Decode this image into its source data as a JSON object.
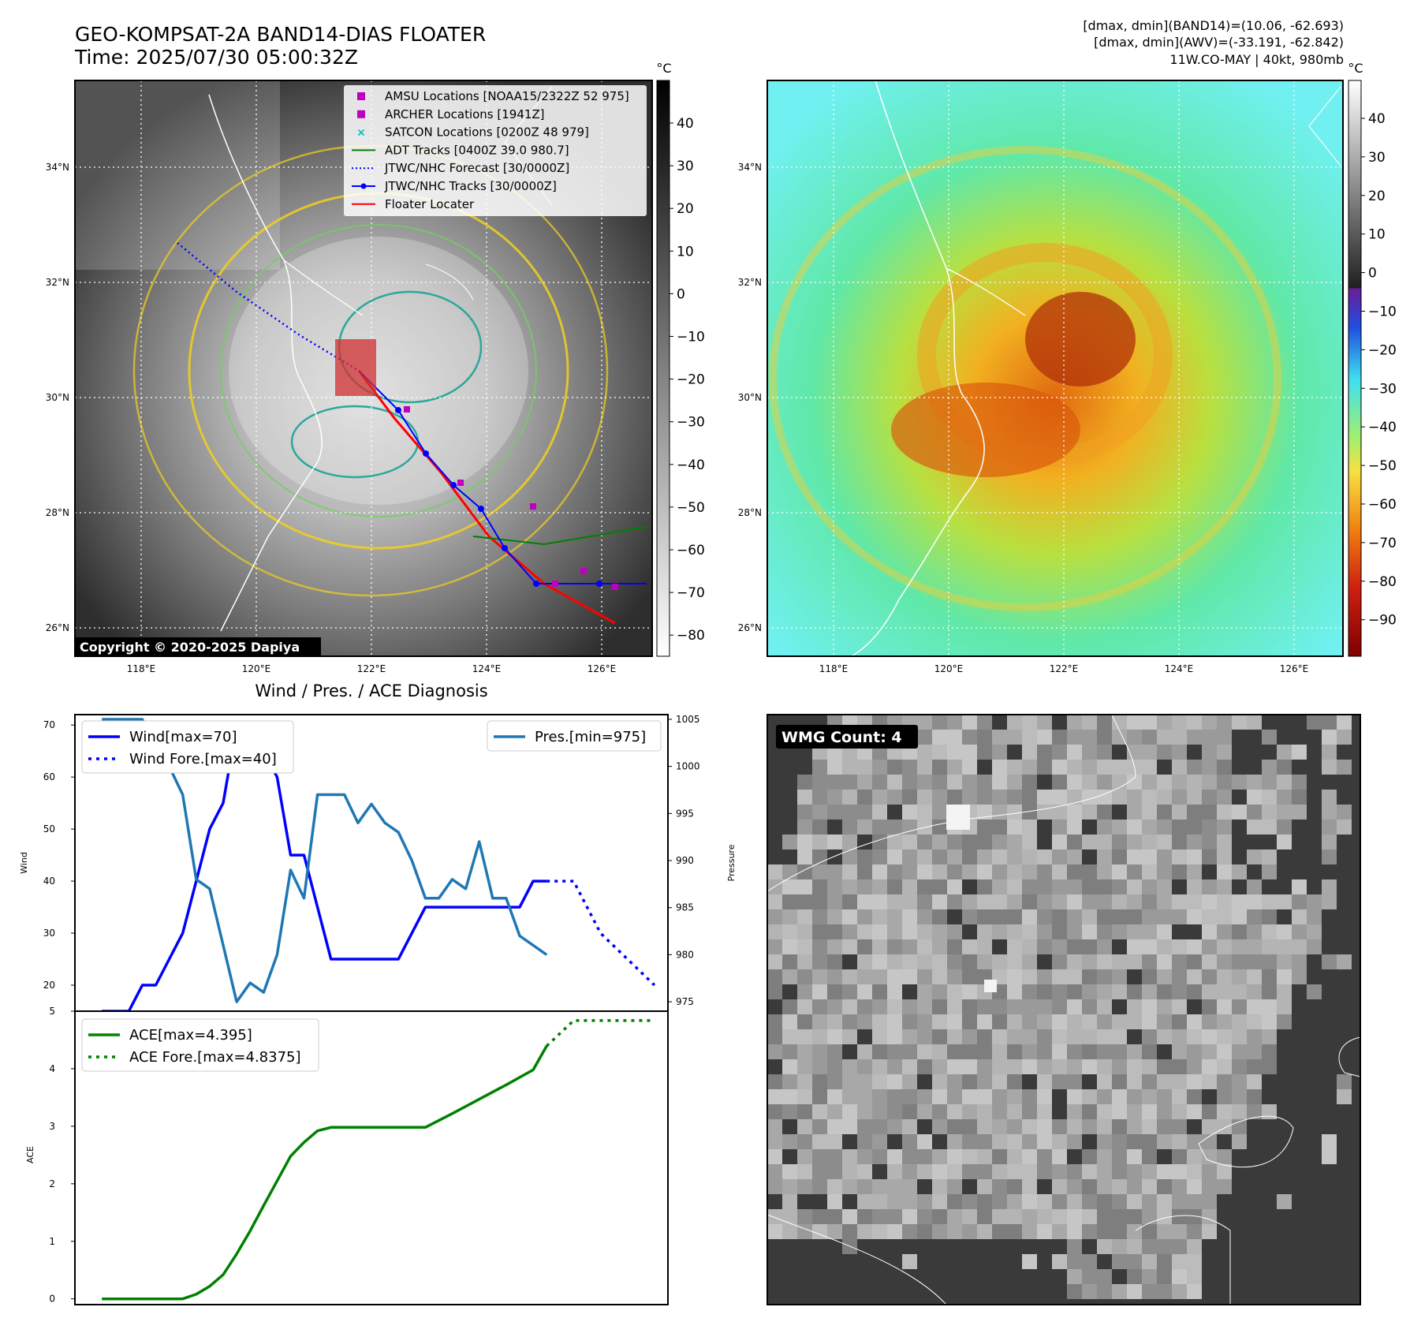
{
  "header": {
    "title_line1": "GEO-KOMPSAT-2A BAND14-DIAS FLOATER",
    "title_line2": "Time: 2025/07/30 05:00:32Z",
    "stats_line1": "[dmax, dmin](BAND14)=(10.06, -62.693)",
    "stats_line2": "[dmax, dmin](AWV)=(-33.191, -62.842)",
    "stats_line3": "11W.CO-MAY | 40kt, 980mb"
  },
  "copyright": "Copyright © 2020-2025 Dapiya",
  "map": {
    "lon_ticks": [
      "118°E",
      "120°E",
      "122°E",
      "124°E",
      "126°E"
    ],
    "lat_ticks": [
      "34°N",
      "32°N",
      "30°N",
      "28°N",
      "26°N"
    ]
  },
  "ir_panel": {
    "legend": [
      {
        "label": "AMSU Locations [NOAA15/2322Z 52 975]",
        "marker": "square",
        "color": "#c000c0"
      },
      {
        "label": "ARCHER Locations [1941Z]",
        "marker": "square",
        "color": "#c000c0"
      },
      {
        "label": "SATCON Locations [0200Z 48 979]",
        "marker": "x",
        "color": "#00bfbf"
      },
      {
        "label": "ADT Tracks [0400Z 39.0 980.7]",
        "marker": "line",
        "color": "#008000"
      },
      {
        "label": "JTWC/NHC Forecast [30/0000Z]",
        "marker": "dotted",
        "color": "#0000ff"
      },
      {
        "label": "JTWC/NHC Tracks [30/0000Z]",
        "marker": "line-dot",
        "color": "#0000ff"
      },
      {
        "label": "Floater Locater",
        "marker": "line",
        "color": "#ff0000"
      }
    ],
    "colorbar_unit": "°C",
    "colorbar_ticks": [
      "40",
      "30",
      "20",
      "10",
      "0",
      "−10",
      "−20",
      "−30",
      "−40",
      "−50",
      "−60",
      "−70",
      "−80"
    ]
  },
  "color_panel": {
    "colorbar_unit": "°C",
    "colorbar_ticks": [
      "40",
      "30",
      "20",
      "10",
      "0",
      "−10",
      "−20",
      "−30",
      "−40",
      "−50",
      "−60",
      "−70",
      "−80",
      "−90"
    ]
  },
  "wmg_panel": {
    "label": "WMG Count: 4"
  },
  "diagnosis": {
    "title": "Wind / Pres. / ACE Diagnosis",
    "wind_ylabel": "Wind",
    "pres_ylabel": "Pressure",
    "ace_ylabel": "ACE"
  },
  "chart_data": [
    {
      "type": "line",
      "title": "Wind / Pres. / ACE Diagnosis",
      "ylabel": "Wind",
      "ylim": [
        15,
        72
      ],
      "yticks": [
        20,
        30,
        40,
        50,
        60,
        70
      ],
      "xlim": [
        -2,
        42
      ],
      "series": [
        {
          "name": "Wind[max=70]",
          "color": "#0000ff",
          "style": "solid",
          "x": [
            0,
            2,
            3,
            4,
            6,
            8,
            9,
            10,
            11,
            12,
            13,
            14,
            15,
            16,
            17,
            19,
            22,
            24,
            25,
            27,
            29,
            31,
            32,
            33
          ],
          "values": [
            15,
            15,
            20,
            20,
            30,
            50,
            55,
            70,
            65,
            65,
            60,
            45,
            45,
            35,
            25,
            25,
            25,
            35,
            35,
            35,
            35,
            35,
            40,
            40
          ]
        },
        {
          "name": "Wind Fore.[max=40]",
          "color": "#0000ff",
          "style": "dotted",
          "x": [
            33,
            35,
            36,
            37,
            39,
            41
          ],
          "values": [
            40,
            40,
            35,
            30,
            25,
            20
          ]
        }
      ]
    },
    {
      "type": "line",
      "ylabel": "Pressure",
      "ylim": [
        974,
        1005.5
      ],
      "yticks": [
        975,
        980,
        985,
        990,
        995,
        1000,
        1005
      ],
      "series": [
        {
          "name": "Pres.[min=975]",
          "color": "#1f77b4",
          "style": "solid",
          "x": [
            0,
            3,
            4,
            5,
            6,
            7,
            8,
            9,
            10,
            11,
            12,
            13,
            14,
            15,
            16,
            17,
            18,
            19,
            20,
            21,
            22,
            23,
            24,
            25,
            26,
            27,
            28,
            29,
            30,
            31,
            33
          ],
          "values": [
            1005,
            1005,
            1002,
            1000,
            997,
            988,
            987,
            981,
            975,
            977,
            976,
            980,
            989,
            986,
            997,
            997,
            997,
            994,
            996,
            994,
            993,
            990,
            986,
            986,
            988,
            987,
            992,
            986,
            986,
            982,
            980
          ]
        }
      ]
    },
    {
      "type": "line",
      "ylabel": "ACE",
      "ylim": [
        -0.1,
        5
      ],
      "yticks": [
        0,
        1,
        2,
        3,
        4,
        5
      ],
      "xlim": [
        -2,
        42
      ],
      "series": [
        {
          "name": "ACE[max=4.395]",
          "color": "#008000",
          "style": "solid",
          "x": [
            0,
            3,
            6,
            7,
            8,
            9,
            10,
            11,
            12,
            13,
            14,
            15,
            16,
            17,
            18,
            19,
            20,
            21,
            22,
            24,
            26,
            28,
            30,
            31,
            32,
            33
          ],
          "values": [
            0,
            0,
            0,
            0.08,
            0.22,
            0.42,
            0.78,
            1.18,
            1.62,
            2.05,
            2.48,
            2.72,
            2.92,
            2.98,
            2.98,
            2.98,
            2.98,
            2.98,
            2.98,
            2.98,
            3.22,
            3.47,
            3.72,
            3.85,
            3.98,
            4.395
          ]
        },
        {
          "name": "ACE Fore.[max=4.8375]",
          "color": "#008000",
          "style": "dotted",
          "x": [
            33,
            35,
            37,
            39,
            41
          ],
          "values": [
            4.395,
            4.8375,
            4.8375,
            4.8375,
            4.8375
          ]
        }
      ]
    }
  ]
}
